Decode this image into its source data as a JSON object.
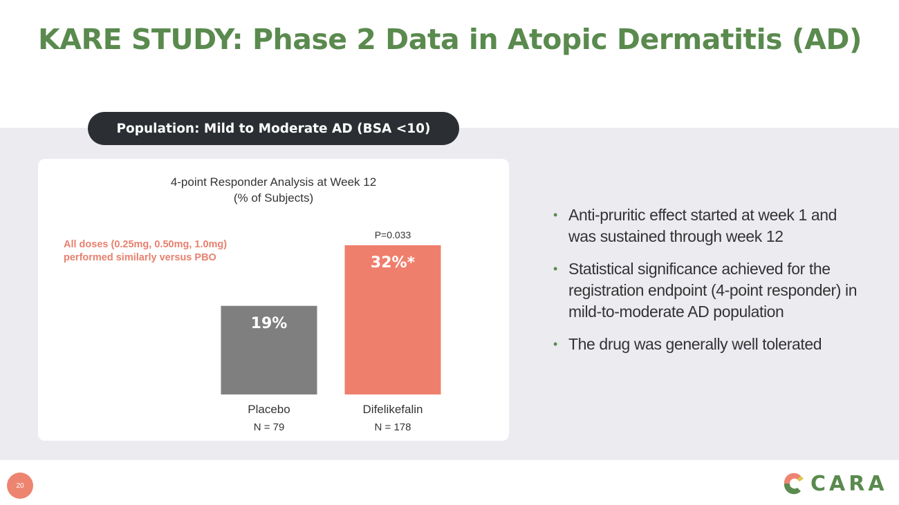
{
  "slide": {
    "title": "KARE STUDY: Phase 2 Data in Atopic Dermatitis (AD)",
    "population_label": "Population: Mild to Moderate AD (BSA <10)",
    "page_number": "20",
    "logo_text": "CARA"
  },
  "chart_card": {
    "title_line1": "4-point Responder Analysis at Week 12",
    "title_line2": "(% of Subjects)",
    "note_line1": "All doses (0.25mg, 0.50mg, 1.0mg)",
    "note_line2": "performed similarly versus PBO"
  },
  "chart_data": {
    "type": "bar",
    "title": "4-point Responder Analysis at Week 12 (% of Subjects)",
    "unit": "% of Subjects",
    "categories": [
      "Placebo",
      "Difelikefalin"
    ],
    "sample_sizes": [
      "N = 79",
      "N = 178"
    ],
    "values": [
      19,
      32
    ],
    "value_labels": [
      "19%",
      "32%*"
    ],
    "colors": [
      "#7f7f7f",
      "#ef7f6d"
    ],
    "annotation": "P=0.033",
    "ylim": [
      0,
      32
    ],
    "grid": false
  },
  "bullets": [
    "Anti-pruritic effect started at week 1 and was sustained through week 12",
    "Statistical significance achieved for the registration endpoint (4-point responder) in mild-to-moderate AD population",
    "The drug was generally well tolerated"
  ],
  "colors": {
    "title_green": "#5a8a4e",
    "accent_salmon": "#ef7f6d",
    "placebo_gray": "#7f7f7f",
    "pill_dark": "#2b2f33",
    "band_gray": "#ecebf0"
  }
}
